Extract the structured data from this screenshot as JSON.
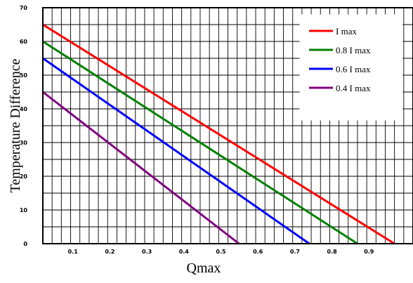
{
  "chart_data": {
    "type": "line",
    "title": "",
    "xlabel": "Qmax",
    "ylabel": "Temperature Difference",
    "xlim": [
      0,
      1.0
    ],
    "ylim": [
      0,
      70
    ],
    "grid": true,
    "legend_position": "top-right",
    "x_ticks": [
      "0.1",
      "0.2",
      "0.3",
      "0.4",
      "0.5",
      "0.6",
      "0.7",
      "0.8",
      "0.9"
    ],
    "y_ticks": [
      "0",
      "10",
      "20",
      "30",
      "40",
      "50",
      "60",
      "70"
    ],
    "series": [
      {
        "name": "I max",
        "color": "#ff0000",
        "x": [
          0,
          0.95
        ],
        "y": [
          65,
          0
        ]
      },
      {
        "name": "0.8 I max",
        "color": "#008000",
        "x": [
          0,
          0.85
        ],
        "y": [
          60,
          0
        ]
      },
      {
        "name": "0.6 I max",
        "color": "#0000ff",
        "x": [
          0,
          0.72
        ],
        "y": [
          55,
          0
        ]
      },
      {
        "name": "0.4 I max",
        "color": "#800080",
        "x": [
          0,
          0.53
        ],
        "y": [
          45,
          0
        ]
      }
    ]
  }
}
